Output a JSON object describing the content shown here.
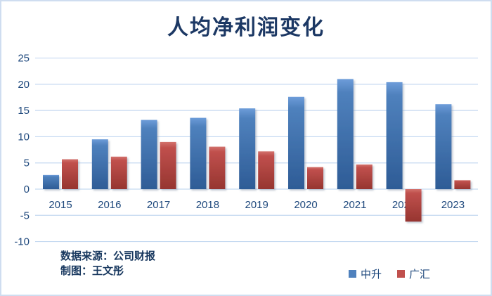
{
  "window": {
    "background": "#FFFFFF",
    "border_color": "#CFDDF0"
  },
  "chart_data": {
    "type": "bar",
    "title": "人均净利润变化",
    "categories": [
      "2015",
      "2016",
      "2017",
      "2018",
      "2019",
      "2020",
      "2021",
      "2022",
      "2023"
    ],
    "series": [
      {
        "name": "中升",
        "color": "#4F81BD",
        "color_light": "#6D9CD9",
        "color_dark": "#2E5C96",
        "values": [
          2.7,
          9.5,
          13.2,
          13.6,
          15.4,
          17.6,
          21.0,
          20.4,
          16.2
        ]
      },
      {
        "name": "广汇",
        "color": "#C0504D",
        "color_light": "#D3726D",
        "color_dark": "#963530",
        "values": [
          5.7,
          6.2,
          9.0,
          8.1,
          7.2,
          4.2,
          4.7,
          -6.2,
          1.7
        ]
      }
    ],
    "y_ticks": [
      25,
      20,
      15,
      10,
      5,
      0,
      -5,
      -10
    ],
    "ylim": [
      -10,
      25
    ],
    "grid": true,
    "gridline_color": "#C5D9F1",
    "axis_label_color": "#1F497D",
    "legend_position": "bottom-right"
  },
  "footer": {
    "source_line": "数据来源：公司财报",
    "credit_line": "制图：王文彤"
  },
  "legend": {
    "items": [
      {
        "label": "中升",
        "color": "#4F81BD"
      },
      {
        "label": "广汇",
        "color": "#C0504D"
      }
    ]
  }
}
